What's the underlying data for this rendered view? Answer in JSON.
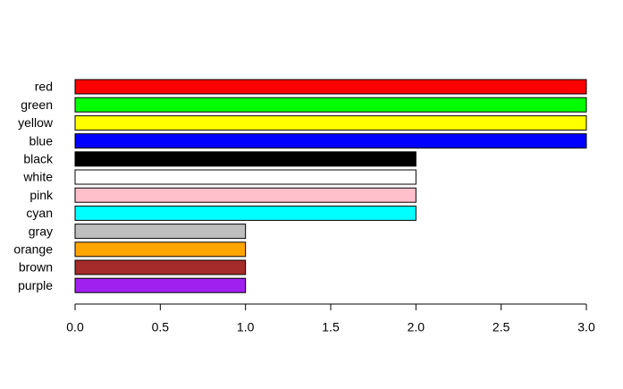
{
  "chart_data": {
    "type": "barh",
    "categories": [
      "red",
      "green",
      "yellow",
      "blue",
      "black",
      "white",
      "pink",
      "cyan",
      "gray",
      "orange",
      "brown",
      "purple"
    ],
    "values": [
      3,
      3,
      3,
      3,
      2,
      2,
      2,
      2,
      1,
      1,
      1,
      1
    ],
    "colors": [
      "#ff0000",
      "#00ff00",
      "#ffff00",
      "#0000ff",
      "#000000",
      "#ffffff",
      "#ffc0cb",
      "#00ffff",
      "#bebebe",
      "#ffa500",
      "#a52a2a",
      "#a020f0"
    ],
    "xlim": [
      0,
      3
    ],
    "xticks": [
      {
        "value": 0,
        "label": "0.0"
      },
      0.5,
      {
        "value": 1,
        "label": "1.0"
      },
      1.5,
      {
        "value": 2,
        "label": "2.0"
      },
      2.5,
      {
        "value": 3,
        "label": "3.0"
      }
    ]
  }
}
